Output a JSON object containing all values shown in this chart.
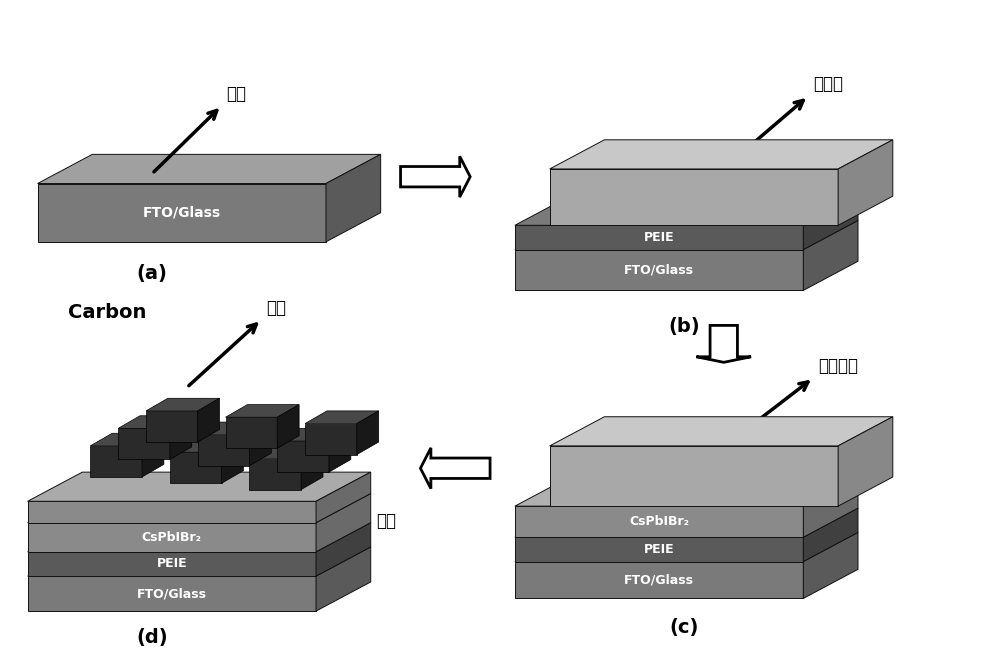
{
  "fig_width": 10.0,
  "fig_height": 6.51,
  "bg_color": "#ffffff",
  "colors": {
    "fto_front": "#7a7a7a",
    "fto_top": "#a0a0a0",
    "fto_side": "#5a5a5a",
    "peie_front": "#5a5a5a",
    "peie_top": "#7a7a7a",
    "peie_side": "#404040",
    "cs_front": "#8a8a8a",
    "cs_top": "#b0b0b0",
    "cs_side": "#6a6a6a",
    "light_front": "#a8a8a8",
    "light_top": "#c8c8c8",
    "light_side": "#888888",
    "carbon_plate_front": "#8a8a8a",
    "carbon_plate_top": "#aaaaaa",
    "carbon_plate_side": "#6a6a6a",
    "block_front": "#2a2a2a",
    "block_top": "#484848",
    "block_side": "#181818"
  },
  "labels": {
    "a": "(a)",
    "b": "(b)",
    "c": "(c)",
    "d": "(d)",
    "fto": "FTO/Glass",
    "peie": "PEIE",
    "cspbibr2": "CsPbIBr₂",
    "substrate_cn": "衁底",
    "modifier_cn": "修饰层",
    "active_cn": "光活性层",
    "cathode_cn": "阴极",
    "anode_cn": "阳极",
    "carbon_en": "Carbon"
  }
}
